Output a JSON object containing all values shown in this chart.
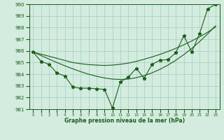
{
  "x": [
    0,
    1,
    2,
    3,
    4,
    5,
    6,
    7,
    8,
    9,
    10,
    11,
    12,
    13,
    14,
    15,
    16,
    17,
    18,
    19,
    20,
    21,
    22,
    23
  ],
  "y_main": [
    985.9,
    985.1,
    984.85,
    984.1,
    983.85,
    982.9,
    982.8,
    982.8,
    982.75,
    982.7,
    981.1,
    983.35,
    983.75,
    984.5,
    983.65,
    984.85,
    985.2,
    985.25,
    985.85,
    987.3,
    985.9,
    987.5,
    989.6,
    990.0
  ],
  "y_smooth1": [
    985.9,
    985.72,
    985.54,
    985.36,
    985.18,
    985.0,
    984.9,
    984.82,
    984.78,
    984.75,
    984.78,
    984.85,
    984.95,
    985.1,
    985.28,
    985.48,
    985.7,
    985.95,
    986.22,
    986.52,
    986.85,
    987.2,
    987.6,
    988.05
  ],
  "y_smooth2": [
    985.9,
    985.6,
    985.3,
    985.0,
    984.72,
    984.46,
    984.22,
    984.0,
    983.82,
    983.68,
    983.58,
    983.55,
    983.58,
    983.7,
    983.88,
    984.12,
    984.42,
    984.78,
    985.2,
    985.68,
    986.2,
    986.8,
    987.45,
    988.15
  ],
  "line_color": "#1a5c1a",
  "bg_color": "#d4ece0",
  "grid_color": "#a8d4c0",
  "xlabel": "Graphe pression niveau de la mer (hPa)",
  "ylim": [
    981,
    990
  ],
  "xlim": [
    -0.5,
    23.5
  ],
  "yticks": [
    981,
    982,
    983,
    984,
    985,
    986,
    987,
    988,
    989,
    990
  ],
  "xtick_labels": [
    "0",
    "1",
    "2",
    "3",
    "4",
    "5",
    "6",
    "7",
    "8",
    "9",
    "10",
    "11",
    "12",
    "13",
    "14",
    "15",
    "16",
    "17",
    "18",
    "19",
    "20",
    "21",
    "22",
    "23"
  ]
}
